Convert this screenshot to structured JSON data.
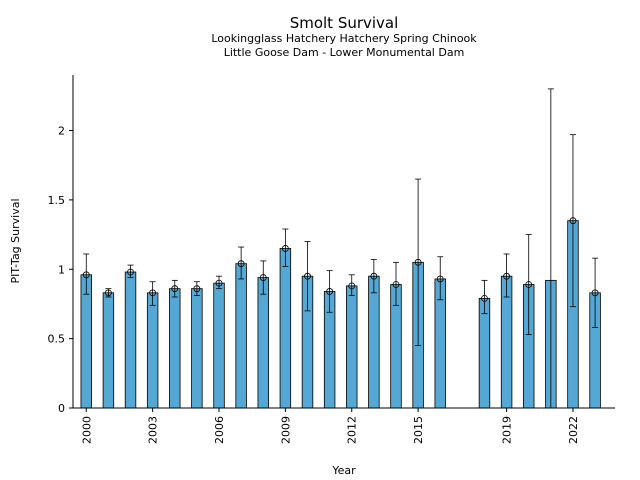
{
  "chart_data": {
    "type": "bar",
    "title": "Smolt Survival",
    "subtitle_lines": [
      "Lookingglass Hatchery Hatchery Spring Chinook",
      "Little Goose Dam - Lower Monumental Dam"
    ],
    "xlabel": "Year",
    "ylabel": "PIT-Tag Survival",
    "ylim": [
      0,
      2.4
    ],
    "xlim": [
      1999.4,
      2023.9
    ],
    "yticks": [
      "0",
      "0.5",
      "1",
      "1.5",
      "2"
    ],
    "ytick_values": [
      0,
      0.5,
      1,
      1.5,
      2
    ],
    "xticks": [
      "2000",
      "2003",
      "2006",
      "2009",
      "2012",
      "2015",
      "2019",
      "2022"
    ],
    "xtick_values": [
      2000,
      2003,
      2006,
      2009,
      2012,
      2015,
      2019,
      2022
    ],
    "bar_color": "#56a8d4",
    "grid": false,
    "points": [
      {
        "year": 2000,
        "value": 0.96,
        "lower": 0.82,
        "upper": 1.11
      },
      {
        "year": 2001,
        "value": 0.83,
        "lower": 0.8,
        "upper": 0.86
      },
      {
        "year": 2002,
        "value": 0.98,
        "lower": 0.94,
        "upper": 1.03
      },
      {
        "year": 2003,
        "value": 0.83,
        "lower": 0.74,
        "upper": 0.91
      },
      {
        "year": 2004,
        "value": 0.86,
        "lower": 0.8,
        "upper": 0.92
      },
      {
        "year": 2005,
        "value": 0.86,
        "lower": 0.81,
        "upper": 0.91
      },
      {
        "year": 2006,
        "value": 0.9,
        "lower": 0.86,
        "upper": 0.95
      },
      {
        "year": 2007,
        "value": 1.04,
        "lower": 0.93,
        "upper": 1.16
      },
      {
        "year": 2008,
        "value": 0.94,
        "lower": 0.82,
        "upper": 1.06
      },
      {
        "year": 2009,
        "value": 1.15,
        "lower": 1.02,
        "upper": 1.29
      },
      {
        "year": 2010,
        "value": 0.95,
        "lower": 0.7,
        "upper": 1.2
      },
      {
        "year": 2011,
        "value": 0.84,
        "lower": 0.69,
        "upper": 0.99
      },
      {
        "year": 2012,
        "value": 0.88,
        "lower": 0.81,
        "upper": 0.96
      },
      {
        "year": 2013,
        "value": 0.95,
        "lower": 0.83,
        "upper": 1.07
      },
      {
        "year": 2014,
        "value": 0.89,
        "lower": 0.74,
        "upper": 1.05
      },
      {
        "year": 2015,
        "value": 1.05,
        "lower": 0.45,
        "upper": 1.65
      },
      {
        "year": 2016,
        "value": 0.93,
        "lower": 0.78,
        "upper": 1.09
      },
      {
        "year": 2018,
        "value": 0.79,
        "lower": 0.68,
        "upper": 0.92
      },
      {
        "year": 2019,
        "value": 0.95,
        "lower": 0.8,
        "upper": 1.11
      },
      {
        "year": 2020,
        "value": 0.89,
        "lower": 0.53,
        "upper": 1.25
      },
      {
        "year": 2021,
        "value": 0.92,
        "lower": 0.0,
        "upper": 2.3,
        "no_marker": true
      },
      {
        "year": 2022,
        "value": 1.35,
        "lower": 0.73,
        "upper": 1.97
      },
      {
        "year": 2023,
        "value": 0.83,
        "lower": 0.58,
        "upper": 1.08
      }
    ]
  }
}
